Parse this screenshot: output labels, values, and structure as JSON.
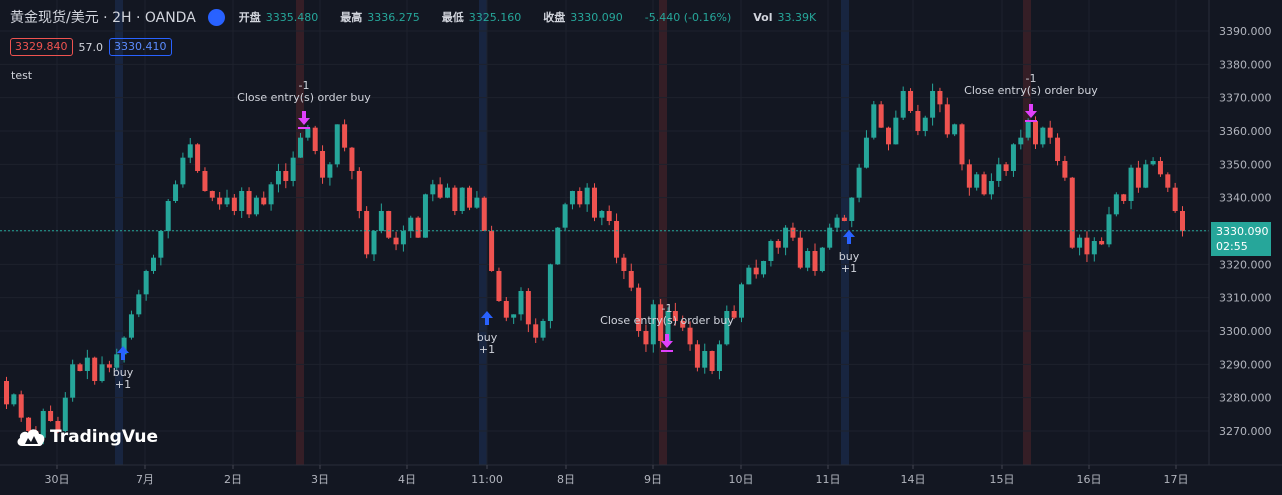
{
  "header": {
    "symbol": "黄金现货/美元 · 2H · OANDA",
    "open_label": "开盘",
    "open_value": "3335.480",
    "high_label": "最高",
    "high_value": "3336.275",
    "low_label": "最低",
    "low_value": "3325.160",
    "close_label": "收盘",
    "close_value": "3330.090",
    "change_value": "-5.440 (-0.16%)",
    "vol_label": "Vol",
    "vol_value": "33.39K"
  },
  "quote": {
    "bid": "3329.840",
    "spread": "57.0",
    "ask": "3330.410"
  },
  "indicator_label": "test",
  "brand": "TradingVue",
  "price_tag": {
    "price": "3330.090",
    "countdown": "02:55"
  },
  "colors": {
    "up": "#26a69a",
    "down": "#ef5350",
    "buy_arrow": "#2962ff",
    "sell_arrow": "#e040fb",
    "background": "#131722"
  },
  "chart_data": {
    "type": "candlestick",
    "ylim": [
      3262,
      3394
    ],
    "y_ticks": [
      "3270.000",
      "3280.000",
      "3290.000",
      "3300.000",
      "3310.000",
      "3320.000",
      "3330.000",
      "3340.000",
      "3350.000",
      "3360.000",
      "3370.000",
      "3380.000",
      "3390.000"
    ],
    "x_ticks": [
      "30日",
      "7月",
      "2日",
      "3日",
      "4日",
      "11:00",
      "8日",
      "9日",
      "10日",
      "11日",
      "14日",
      "15日",
      "16日",
      "17日"
    ],
    "last_price": 3330.09,
    "path": [
      3285,
      3278,
      3281,
      3274,
      3270,
      3268,
      3276,
      3273,
      3270,
      3280,
      3290,
      3288,
      3292,
      3285,
      3290,
      3289,
      3293,
      3298,
      3305,
      3311,
      3318,
      3322,
      3330,
      3339,
      3344,
      3352,
      3356,
      3348,
      3342,
      3340,
      3338,
      3340,
      3336,
      3342,
      3335,
      3340,
      3338,
      3344,
      3348,
      3345,
      3352,
      3358,
      3361,
      3354,
      3346,
      3350,
      3362,
      3355,
      3348,
      3336,
      3323,
      3330,
      3336,
      3328,
      3326,
      3330,
      3334,
      3328,
      3341,
      3344,
      3340,
      3343,
      3336,
      3343,
      3337,
      3340,
      3330,
      3318,
      3309,
      3304,
      3305,
      3312,
      3302,
      3298,
      3303,
      3320,
      3331,
      3338,
      3342,
      3338,
      3343,
      3334,
      3336,
      3333,
      3322,
      3318,
      3313,
      3300,
      3296,
      3308,
      3297,
      3306,
      3303,
      3301,
      3296,
      3289,
      3294,
      3288,
      3296,
      3306,
      3304,
      3314,
      3319,
      3317,
      3321,
      3327,
      3325,
      3331,
      3328,
      3319,
      3324,
      3318,
      3325,
      3331,
      3334,
      3333,
      3340,
      3349,
      3358,
      3368,
      3361,
      3356,
      3364,
      3372,
      3366,
      3360,
      3364,
      3372,
      3368,
      3359,
      3362,
      3350,
      3343,
      3347,
      3341,
      3345,
      3350,
      3348,
      3356,
      3358,
      3363,
      3356,
      3361,
      3358,
      3351,
      3346,
      3325,
      3328,
      3323,
      3327,
      3326,
      3335,
      3341,
      3339,
      3349,
      3343,
      3350,
      3351,
      3347,
      3343,
      3336,
      3330
    ],
    "trades": [
      {
        "type": "buy",
        "text": "buy",
        "qty": "+1"
      },
      {
        "type": "sell",
        "text": "Close entry(s) order buy",
        "qty": "-1"
      },
      {
        "type": "buy",
        "text": "buy",
        "qty": "+1"
      },
      {
        "type": "sell",
        "text": "Close entry(s) order buy",
        "qty": "-1"
      },
      {
        "type": "buy",
        "text": "buy",
        "qty": "+1"
      },
      {
        "type": "sell",
        "text": "Close entry(s) order buy",
        "qty": "-1"
      }
    ]
  }
}
